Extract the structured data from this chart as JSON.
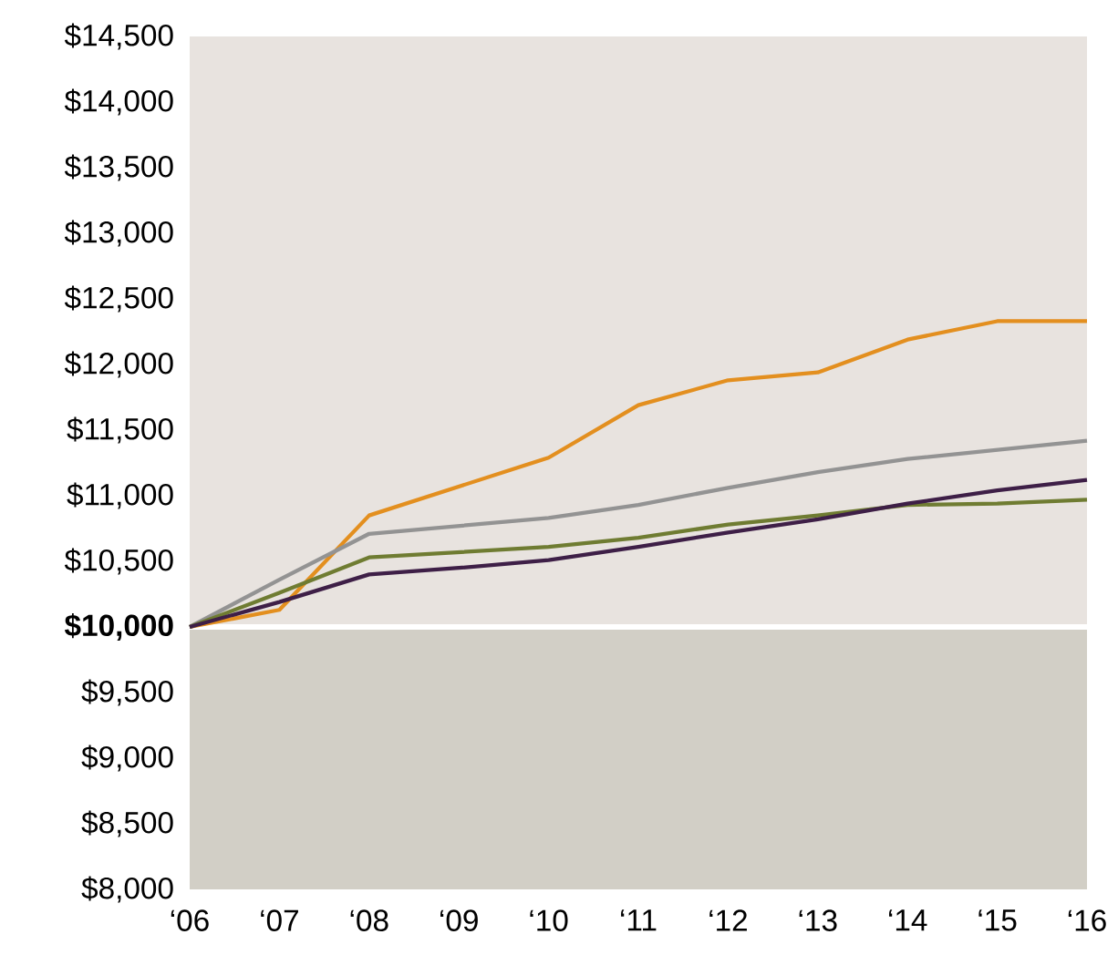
{
  "chart_data": {
    "type": "line",
    "categories": [
      "‘06",
      "‘07",
      "‘08",
      "‘09",
      "‘10",
      "‘11",
      "‘12",
      "‘13",
      "‘14",
      "‘15",
      "‘16"
    ],
    "series": [
      {
        "color": "#e38f1f",
        "values": [
          10000,
          10130,
          10850,
          11070,
          11290,
          11690,
          11880,
          11940,
          12190,
          12330,
          12330
        ]
      },
      {
        "color": "#939393",
        "values": [
          10000,
          10360,
          10710,
          10770,
          10830,
          10930,
          11060,
          11180,
          11280,
          11350,
          11420
        ]
      },
      {
        "color": "#6f7c32",
        "values": [
          10000,
          10260,
          10530,
          10570,
          10610,
          10680,
          10780,
          10850,
          10930,
          10940,
          10970
        ]
      },
      {
        "color": "#3e1f47",
        "values": [
          10000,
          10190,
          10400,
          10450,
          10510,
          10610,
          10720,
          10820,
          10940,
          11040,
          11120
        ]
      }
    ],
    "ylim": [
      8000,
      14500
    ],
    "yticks": [
      {
        "value": 8000,
        "label": "$8,000"
      },
      {
        "value": 8500,
        "label": "$8,500"
      },
      {
        "value": 9000,
        "label": "$9,000"
      },
      {
        "value": 9500,
        "label": "$9,500"
      },
      {
        "value": 10000,
        "label": "$10,000"
      },
      {
        "value": 10500,
        "label": "$10,500"
      },
      {
        "value": 11000,
        "label": "$11,000"
      },
      {
        "value": 11500,
        "label": "$11,500"
      },
      {
        "value": 12000,
        "label": "$12,000"
      },
      {
        "value": 12500,
        "label": "$12,500"
      },
      {
        "value": 13000,
        "label": "$13,000"
      },
      {
        "value": 13500,
        "label": "$13,500"
      },
      {
        "value": 14000,
        "label": "$14,000"
      },
      {
        "value": 14500,
        "label": "$14,500"
      }
    ],
    "bands": [
      {
        "axis": "y",
        "from": 10000,
        "to": 14500,
        "color": "#e8e3df"
      },
      {
        "axis": "y",
        "from": 8000,
        "to": 10000,
        "color": "#d2cfc6"
      }
    ],
    "ref_lines": [
      {
        "axis": "y",
        "value": 10000,
        "color": "#ffffff"
      }
    ]
  }
}
